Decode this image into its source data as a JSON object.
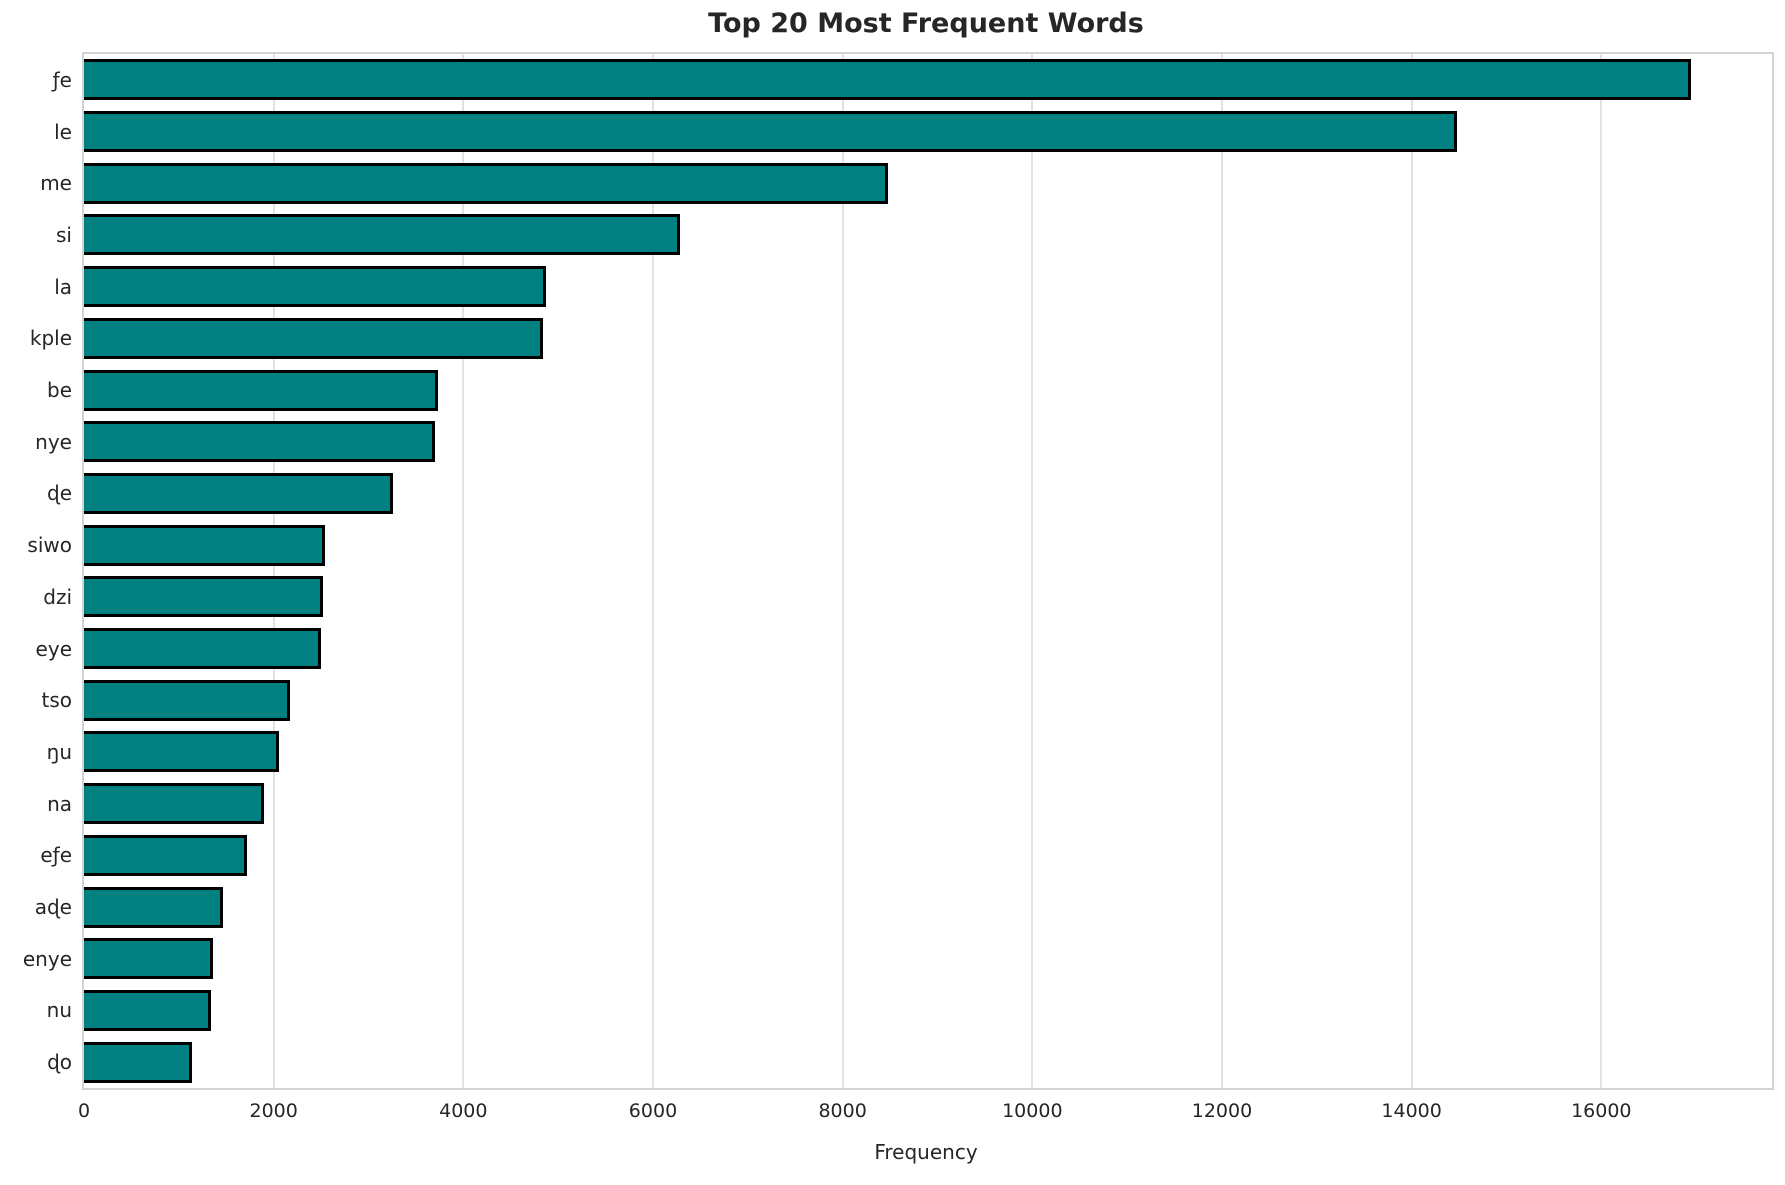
{
  "chart_data": {
    "type": "bar",
    "orientation": "horizontal",
    "title": "Top 20 Most Frequent Words",
    "xlabel": "Frequency",
    "ylabel": "",
    "categories": [
      "ƒe",
      "le",
      "me",
      "si",
      "la",
      "kple",
      "be",
      "nye",
      "ɖe",
      "siwo",
      "dzi",
      "eye",
      "tso",
      "ŋu",
      "na",
      "eƒe",
      "aɖe",
      "enye",
      "nu",
      "ɖo"
    ],
    "values": [
      16950,
      14480,
      8480,
      6280,
      4870,
      4840,
      3730,
      3700,
      3260,
      2540,
      2520,
      2500,
      2170,
      2060,
      1900,
      1720,
      1470,
      1360,
      1340,
      1140
    ],
    "xlim": [
      0,
      17800
    ],
    "xticks": [
      0,
      2000,
      4000,
      6000,
      8000,
      10000,
      12000,
      14000,
      16000
    ],
    "grid": true,
    "legend": null,
    "bar_color": "#008080",
    "bar_edge_color": "#000000"
  },
  "colors": {
    "background": "#ffffff",
    "gridline": "#e2e2e2",
    "spine": "#d4d4d4",
    "text": "#262626"
  }
}
